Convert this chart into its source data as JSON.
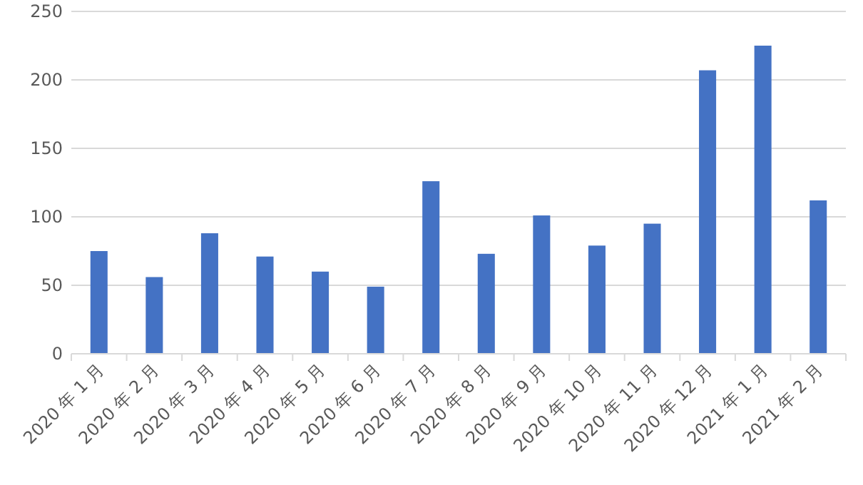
{
  "chart_data": {
    "type": "bar",
    "categories": [
      "2020 年 1 月",
      "2020 年 2 月",
      "2020 年 3 月",
      "2020 年 4 月",
      "2020 年 5 月",
      "2020 年 6 月",
      "2020 年 7 月",
      "2020 年 8 月",
      "2020 年 9 月",
      "2020 年 10 月",
      "2020 年 11 月",
      "2020 年 12 月",
      "2021 年 1 月",
      "2021 年 2 月"
    ],
    "values": [
      75,
      56,
      88,
      71,
      60,
      49,
      126,
      73,
      101,
      79,
      95,
      207,
      225,
      112
    ],
    "color": "#4472c4",
    "ylim": [
      0,
      250
    ],
    "yticks": [
      0,
      50,
      100,
      150,
      200,
      250
    ],
    "grid": "y"
  }
}
